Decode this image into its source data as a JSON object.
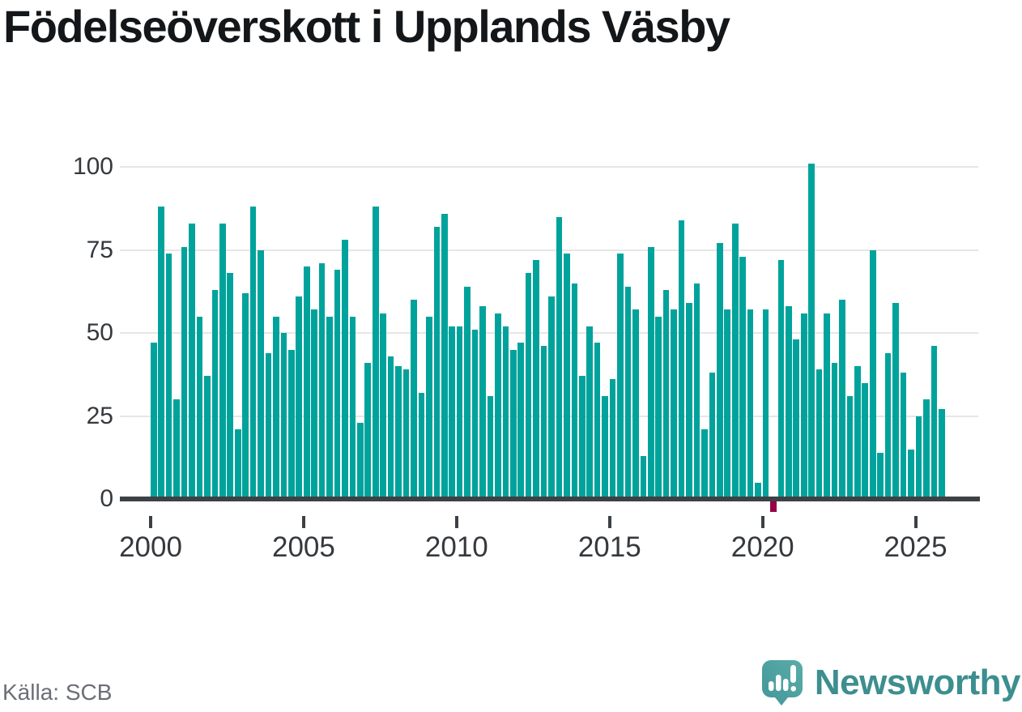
{
  "title": "Födelseöverskott i Upplands Väsby",
  "source": "Källa: SCB",
  "branding": {
    "name": "Newsworthy",
    "icon": "speech-bubble-bar-chart",
    "icon_color": "#4da1a1",
    "text_color": "#3d8e8f"
  },
  "chart_data": {
    "type": "bar",
    "title": "Födelseöverskott i Upplands Väsby",
    "frequency": "quarterly",
    "x_start": "2000 Q1",
    "x_end": "2025 Q4",
    "values_by_year": {
      "2000": [
        47,
        88,
        74,
        30
      ],
      "2001": [
        76,
        83,
        55,
        37
      ],
      "2002": [
        63,
        83,
        68,
        21
      ],
      "2003": [
        62,
        88,
        75,
        44
      ],
      "2004": [
        55,
        50,
        45,
        61
      ],
      "2005": [
        70,
        57,
        71,
        55
      ],
      "2006": [
        69,
        78,
        55,
        23
      ],
      "2007": [
        41,
        88,
        56,
        43
      ],
      "2008": [
        40,
        39,
        60,
        32
      ],
      "2009": [
        55,
        82,
        86,
        52
      ],
      "2010": [
        52,
        64,
        51,
        58
      ],
      "2011": [
        31,
        56,
        52,
        45
      ],
      "2012": [
        47,
        68,
        72,
        46
      ],
      "2013": [
        61,
        85,
        74,
        65
      ],
      "2014": [
        37,
        52,
        47,
        31
      ],
      "2015": [
        36,
        74,
        64,
        57
      ],
      "2016": [
        13,
        76,
        55,
        63
      ],
      "2017": [
        57,
        84,
        59,
        65
      ],
      "2018": [
        21,
        38,
        77,
        57
      ],
      "2019": [
        83,
        73,
        57,
        5
      ],
      "2020": [
        57,
        -4,
        72,
        58
      ],
      "2021": [
        48,
        56,
        101,
        39
      ],
      "2022": [
        56,
        41,
        60,
        31
      ],
      "2023": [
        40,
        35,
        75,
        14
      ],
      "2024": [
        44,
        59,
        38,
        15
      ],
      "2025": [
        25,
        30,
        46,
        27
      ]
    },
    "y_ticks": [
      0,
      25,
      50,
      75,
      100
    ],
    "x_ticks": [
      2000,
      2005,
      2010,
      2015,
      2020,
      2025
    ],
    "ylim": [
      -8,
      105
    ],
    "grid": true,
    "legend": "none",
    "bar_color": "#00a39b",
    "negative_bar_color": "#970347",
    "axis_color": "#3d4145",
    "grid_color": "#e6e6e6"
  }
}
